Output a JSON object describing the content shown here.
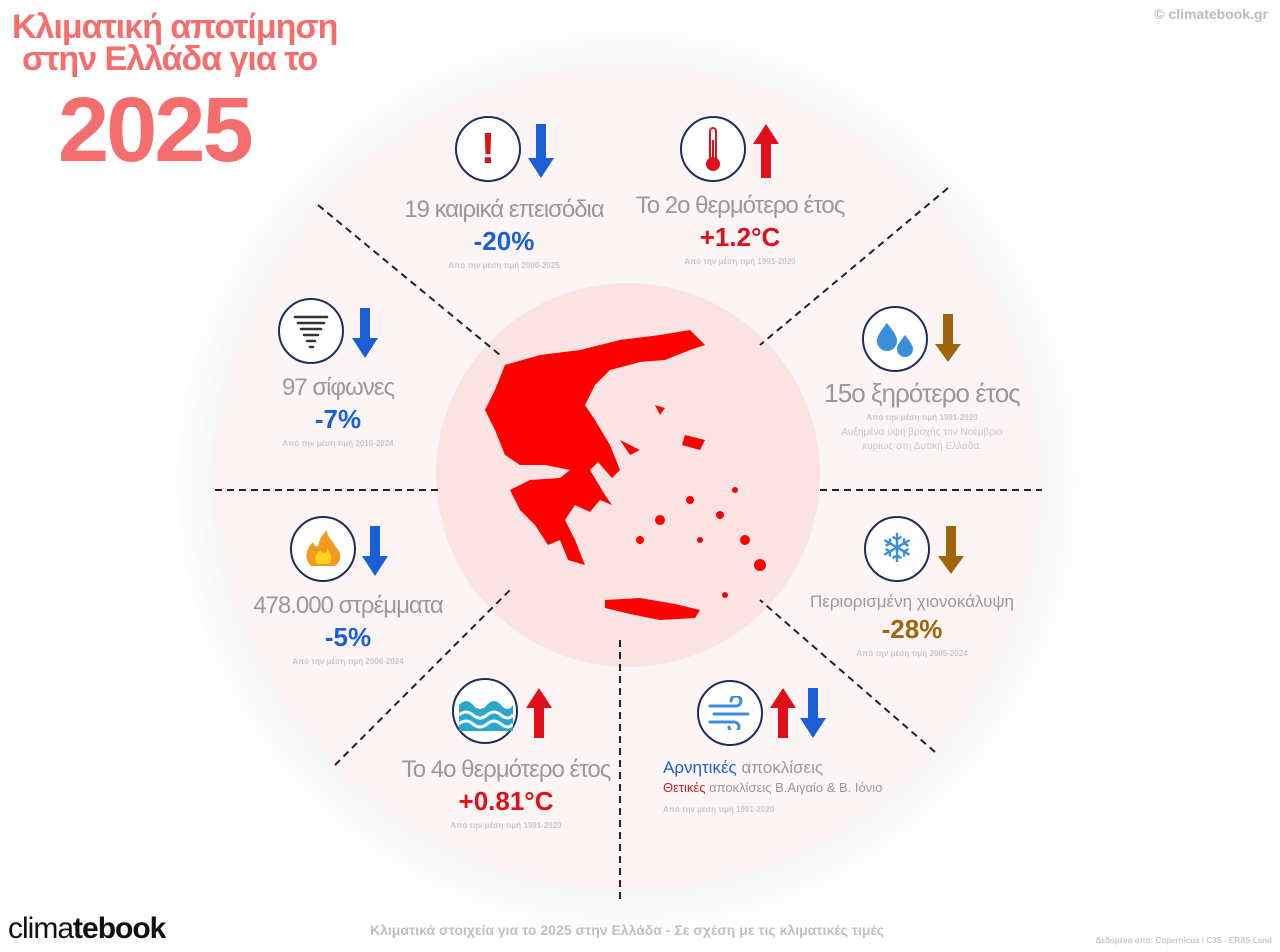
{
  "header": {
    "title_line1": "Κλιματική αποτίμηση",
    "title_line2": "στην Ελλάδα για το",
    "year": "2025",
    "copyright": "© climatebook.gr"
  },
  "colors": {
    "title": "#f46e6e",
    "negative": "#1a5fd6",
    "positive": "#e0101a",
    "drought": "#a0650c",
    "map": "#ff0000"
  },
  "sections": {
    "events": {
      "icon": "exclamation-icon",
      "trend": "down",
      "label": "19 καιρικά επεισόδια",
      "value": "-20%",
      "ref": "Από την μέση τιμή 2000-2025"
    },
    "temperature": {
      "icon": "thermometer-icon",
      "trend": "up",
      "label": "Το 2ο θερμότερο έτος",
      "value": "+1.2°C",
      "ref": "Από την μέση τιμή 1991-2020"
    },
    "rain": {
      "icon": "water-drops-icon",
      "trend": "down",
      "label": "15ο ξηρότερο έτος",
      "value": "",
      "ref": "Από την μέση τιμή 1991-2020",
      "note_line1": "Αυξημένα ύψη βροχής τον Νοέμβριο",
      "note_line2": "κυρίως στη Δυτική Ελλάδα."
    },
    "snow": {
      "icon": "snowflake-icon",
      "trend": "down",
      "label": "Περιορισμένη χιονοκάλυψη",
      "value": "-28%",
      "ref": "Από την μέση τιμή 2005-2024"
    },
    "wind": {
      "icon": "wind-icon",
      "trend": "up-down",
      "neg_word": "Αρνητικές",
      "neg_rest": "αποκλίσεις",
      "pos_word": "Θετικές",
      "pos_rest": "αποκλίσεις Β.Αιγαίο & Β. Ιόνιο",
      "ref": "Από την μέση τιμή 1991-2020"
    },
    "sea": {
      "icon": "sea-waves-icon",
      "trend": "up",
      "label": "Το 4ο θερμότερο έτος",
      "value": "+0.81°C",
      "ref": "Από την μέση τιμή 1991-2020"
    },
    "fires": {
      "icon": "fire-icon",
      "trend": "down",
      "label": "478.000 στρέμματα",
      "value": "-5%",
      "ref": "Από την μέση τιμή 2006-2024"
    },
    "tornadoes": {
      "icon": "tornado-icon",
      "trend": "down",
      "label": "97 σίφωνες",
      "value": "-7%",
      "ref": "Από την μέση τιμή 2010-2024"
    }
  },
  "footer": {
    "logo_light": "clima",
    "logo_bold": "tebook",
    "caption": "Κλιματικά στοιχεία για το 2025 στην Ελλάδα - Σε σχέση με τις κλιματικές τιμές",
    "source": "Δεδομένα από: Copernicus / C3S - ERA5-Land"
  }
}
